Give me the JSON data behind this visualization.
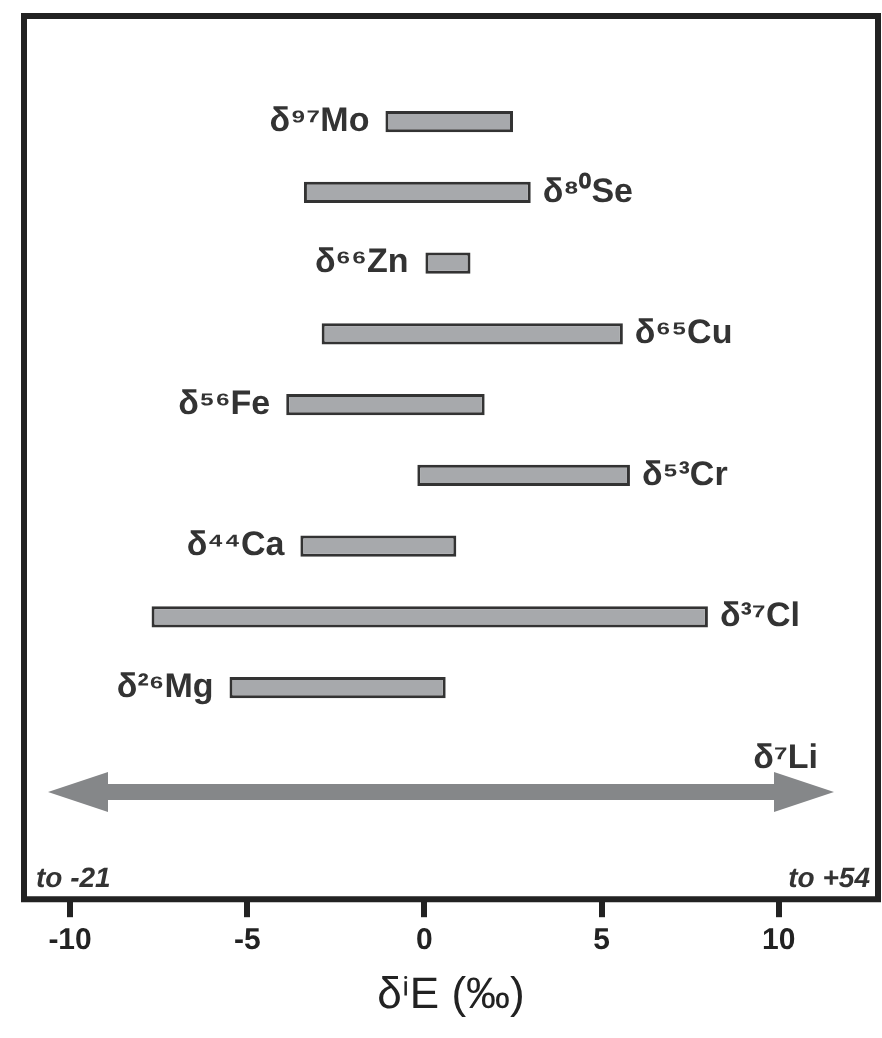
{
  "chart_data": {
    "type": "bar",
    "orientation": "horizontal",
    "xlabel": "δⁱE (‰)",
    "categories": [
      "δ⁹⁷Mo",
      "δ⁸⁰Se",
      "δ⁶⁶Zn",
      "δ⁶⁵Cu",
      "δ⁵⁶Fe",
      "δ⁵³Cr",
      "δ⁴⁴Ca",
      "δ³⁷Cl",
      "δ²⁶Mg",
      "δ⁷Li"
    ],
    "base": [
      -1.1,
      -3.4,
      0.0,
      -2.9,
      -3.9,
      -0.2,
      -3.5,
      -7.7,
      -5.5,
      null
    ],
    "values": [
      3.6,
      6.4,
      1.3,
      8.5,
      5.6,
      6.0,
      4.4,
      15.7,
      6.1,
      null
    ],
    "color": "#a7a9ac",
    "xlim": [
      -11.3,
      12.8
    ],
    "xticks": [
      -10,
      -5,
      0,
      5,
      10
    ],
    "grid": false,
    "legend": false,
    "annotations": [
      "to -21",
      "to +54"
    ]
  }
}
